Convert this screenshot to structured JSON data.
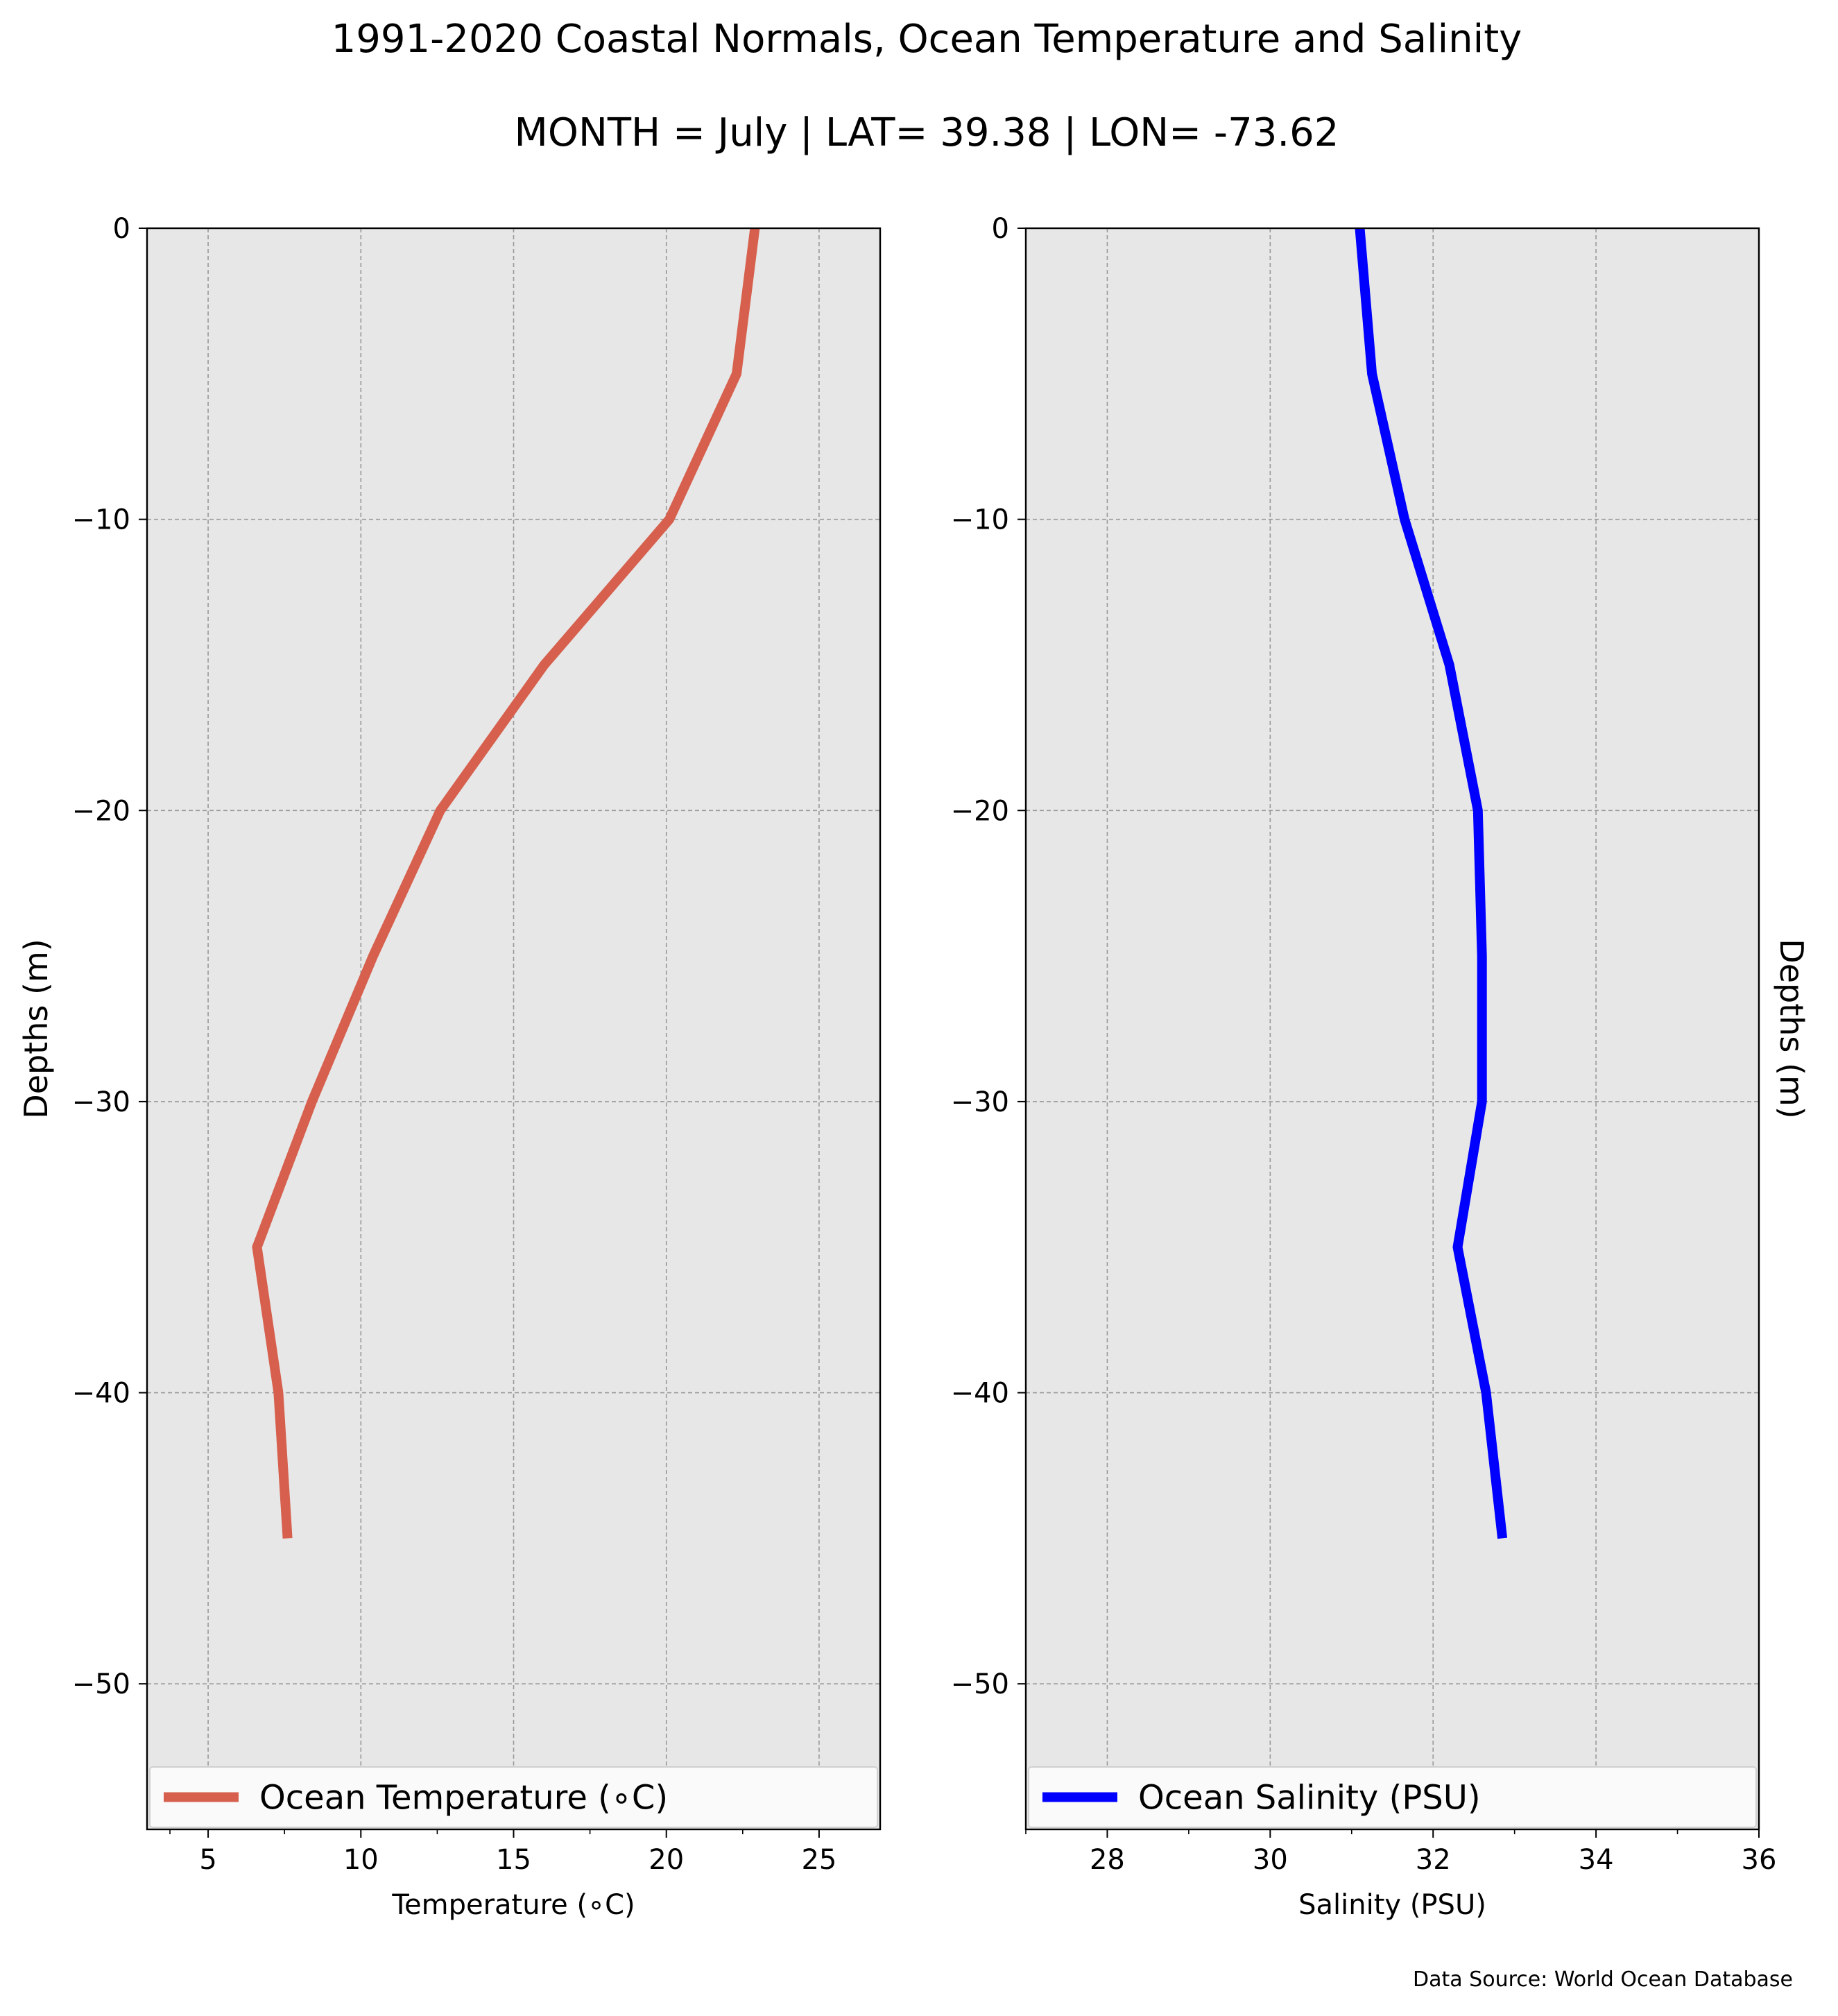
{
  "title": "1991-2020 Coastal Normals, Ocean Temperature and Salinity",
  "subtitle": "MONTH = July | LAT= 39.38 | LON= -73.62",
  "source": "Data Source: World Ocean Database",
  "colors": {
    "background": "#ffffff",
    "plot_bg": "#e7e7e7",
    "grid": "#999999",
    "temperature_line": "#d6604d",
    "salinity_line": "#0000ff"
  },
  "chart_data": [
    {
      "type": "line",
      "xlabel": "Temperature ($^\\circ$C)",
      "xlabel_display": "Temperature (∘C)",
      "ylabel": "Depths (m)",
      "xlim": [
        3,
        27
      ],
      "ylim": [
        -55,
        0
      ],
      "xticks": [
        5,
        10,
        15,
        20,
        25
      ],
      "xminor_ticks": [
        3.75,
        7.5,
        12.5,
        17.5,
        22.5
      ],
      "yticks": [
        0,
        -10,
        -20,
        -30,
        -40,
        -50
      ],
      "ytick_labels": [
        "0",
        "−10",
        "−20",
        "−30",
        "−40",
        "−50"
      ],
      "grid": true,
      "legend_position": "lower center",
      "series": [
        {
          "name": "Ocean Temperature (∘C)",
          "color": "#d6604d",
          "points": [
            {
              "x": 22.9,
              "y": 0
            },
            {
              "x": 22.3,
              "y": -5
            },
            {
              "x": 20.1,
              "y": -10
            },
            {
              "x": 16.0,
              "y": -15
            },
            {
              "x": 12.6,
              "y": -20
            },
            {
              "x": 10.4,
              "y": -25
            },
            {
              "x": 8.4,
              "y": -30
            },
            {
              "x": 6.6,
              "y": -35
            },
            {
              "x": 7.3,
              "y": -40
            },
            {
              "x": 7.6,
              "y": -45
            }
          ]
        }
      ]
    },
    {
      "type": "line",
      "xlabel": "Salinity (PSU)",
      "ylabel": "Depths (m)",
      "xlim": [
        27,
        36
      ],
      "ylim": [
        -55,
        0
      ],
      "xticks": [
        28,
        30,
        32,
        34,
        36
      ],
      "xminor_ticks": [
        27,
        29,
        31,
        33,
        35
      ],
      "yticks": [
        0,
        -10,
        -20,
        -30,
        -40,
        -50
      ],
      "ytick_labels": [
        "0",
        "−10",
        "−20",
        "−30",
        "−40",
        "−50"
      ],
      "grid": true,
      "legend_position": "lower center",
      "series": [
        {
          "name": "Ocean Salinity (PSU)",
          "color": "#0000ff",
          "points": [
            {
              "x": 31.1,
              "y": 0
            },
            {
              "x": 31.25,
              "y": -5
            },
            {
              "x": 31.65,
              "y": -10
            },
            {
              "x": 32.2,
              "y": -15
            },
            {
              "x": 32.55,
              "y": -20
            },
            {
              "x": 32.6,
              "y": -25
            },
            {
              "x": 32.6,
              "y": -30
            },
            {
              "x": 32.3,
              "y": -35
            },
            {
              "x": 32.65,
              "y": -40
            },
            {
              "x": 32.85,
              "y": -45
            }
          ]
        }
      ]
    }
  ]
}
